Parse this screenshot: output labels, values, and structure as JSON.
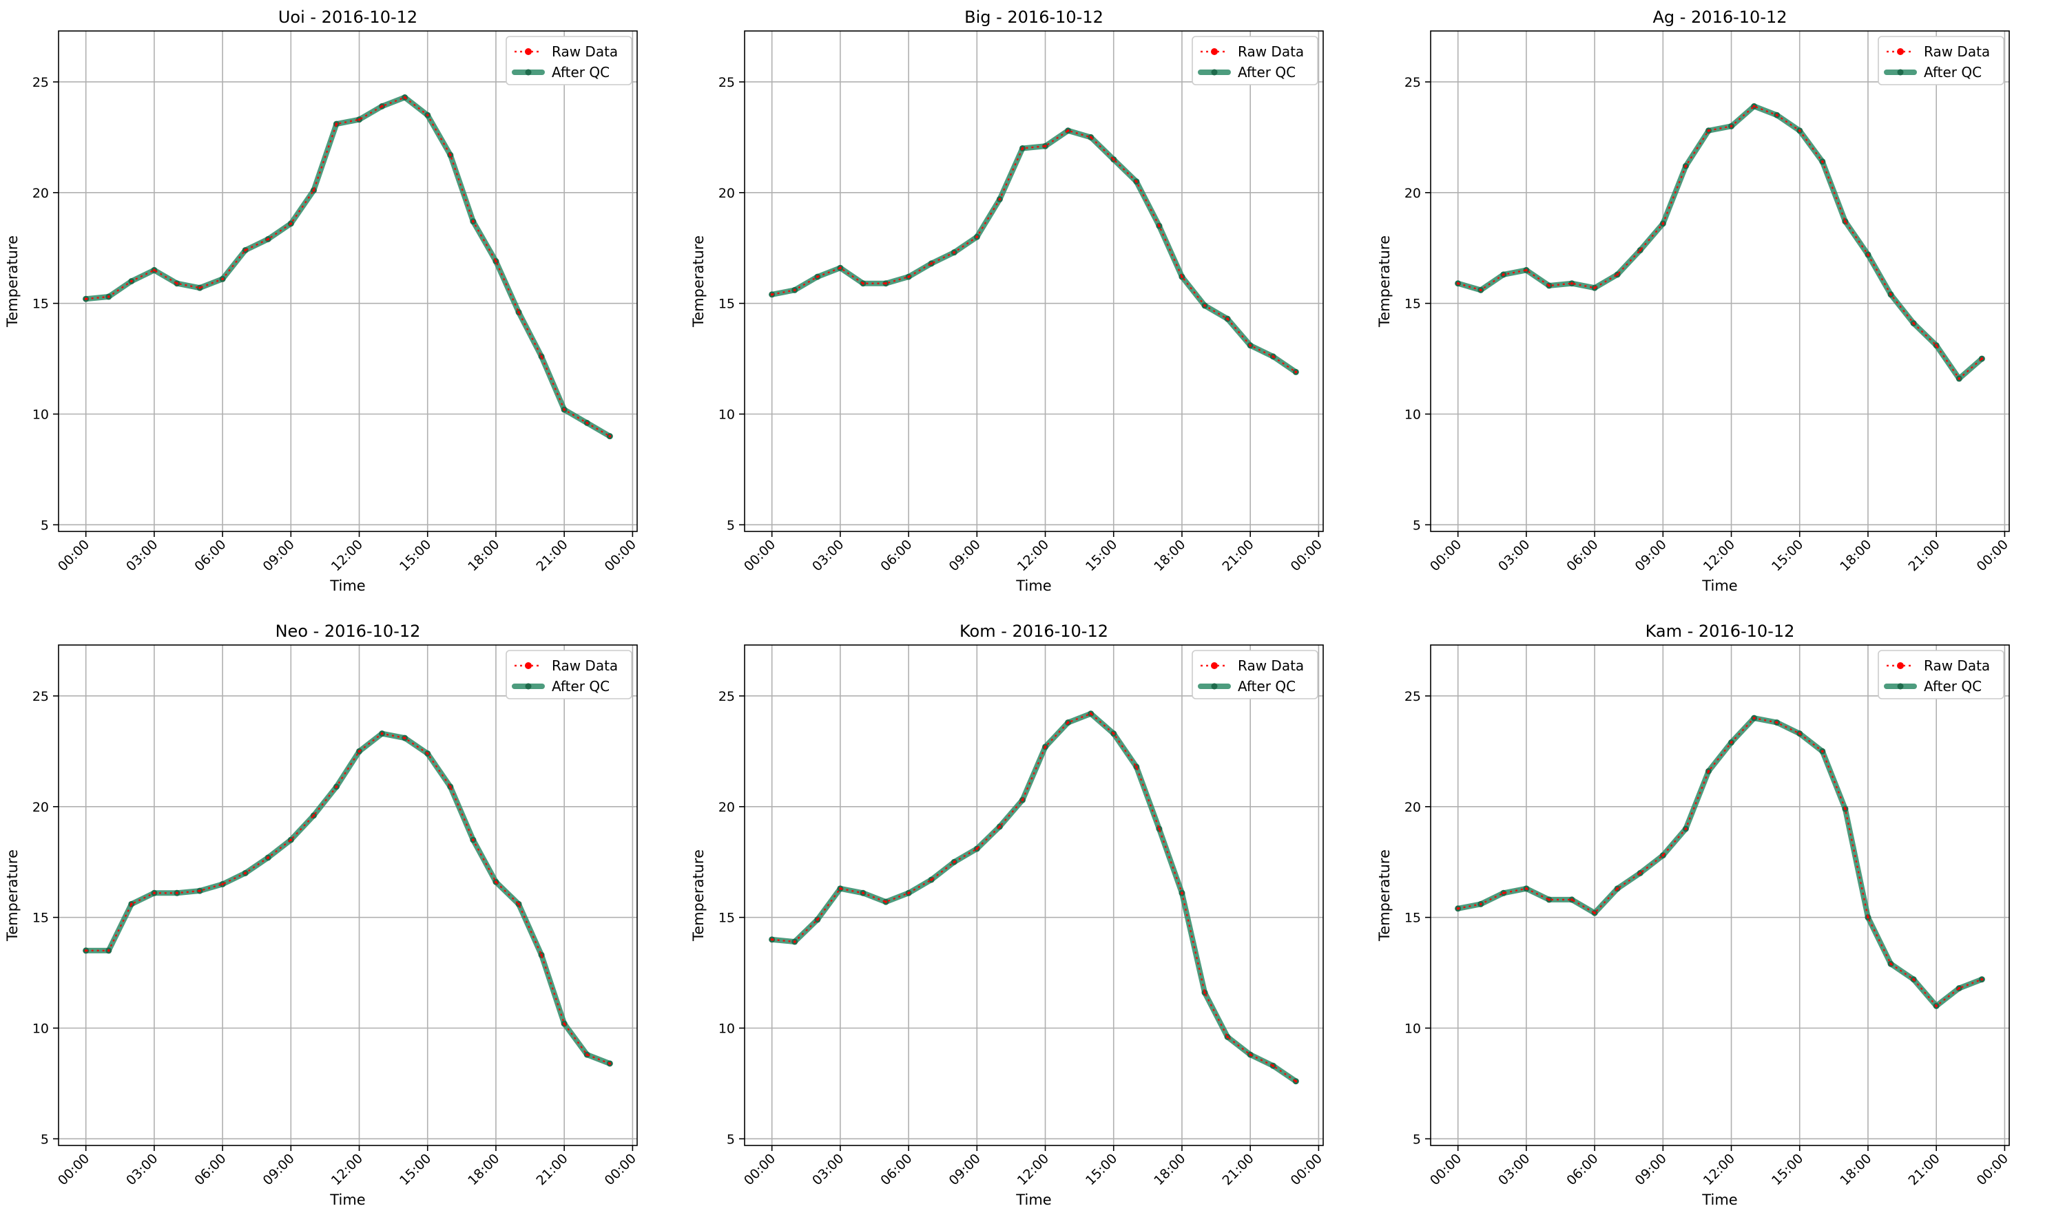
{
  "chart_data": [
    {
      "type": "line",
      "title": "Uoi - 2016-10-12",
      "xlabel": "Time",
      "ylabel": "Temperature",
      "x": [
        "00:00",
        "01:00",
        "02:00",
        "03:00",
        "04:00",
        "05:00",
        "06:00",
        "07:00",
        "08:00",
        "09:00",
        "10:00",
        "11:00",
        "12:00",
        "13:00",
        "14:00",
        "15:00",
        "16:00",
        "17:00",
        "18:00",
        "19:00",
        "20:00",
        "21:00",
        "22:00",
        "23:00"
      ],
      "xticks": [
        "00:00",
        "03:00",
        "06:00",
        "09:00",
        "12:00",
        "15:00",
        "18:00",
        "21:00",
        "00:00"
      ],
      "yticks": [
        "5",
        "10",
        "15",
        "20",
        "25"
      ],
      "xlim": [
        -1.2,
        24.2
      ],
      "ylim": [
        4.7,
        27.3
      ],
      "grid": true,
      "legend": {
        "position": "top-right",
        "entries": [
          "Raw Data",
          "After QC"
        ]
      },
      "series": [
        {
          "name": "Raw Data",
          "color": "#ff0000",
          "values": [
            15.2,
            15.3,
            16.0,
            16.5,
            15.9,
            15.7,
            16.1,
            17.4,
            17.9,
            18.6,
            20.1,
            23.1,
            23.3,
            23.9,
            24.3,
            23.5,
            21.7,
            18.7,
            16.9,
            14.6,
            12.6,
            10.2,
            9.6,
            9.0
          ]
        },
        {
          "name": "After QC",
          "color": "#2e8b67",
          "values": [
            15.2,
            15.3,
            16.0,
            16.5,
            15.9,
            15.7,
            16.1,
            17.4,
            17.9,
            18.6,
            20.1,
            23.1,
            23.3,
            23.9,
            24.3,
            23.5,
            21.7,
            18.7,
            16.9,
            14.6,
            12.6,
            10.2,
            9.6,
            9.0
          ]
        }
      ]
    },
    {
      "type": "line",
      "title": "Big - 2016-10-12",
      "xlabel": "Time",
      "ylabel": "Temperature",
      "x": [
        "00:00",
        "01:00",
        "02:00",
        "03:00",
        "04:00",
        "05:00",
        "06:00",
        "07:00",
        "08:00",
        "09:00",
        "10:00",
        "11:00",
        "12:00",
        "13:00",
        "14:00",
        "15:00",
        "16:00",
        "17:00",
        "18:00",
        "19:00",
        "20:00",
        "21:00",
        "22:00",
        "23:00"
      ],
      "xticks": [
        "00:00",
        "03:00",
        "06:00",
        "09:00",
        "12:00",
        "15:00",
        "18:00",
        "21:00",
        "00:00"
      ],
      "yticks": [
        "5",
        "10",
        "15",
        "20",
        "25"
      ],
      "xlim": [
        -1.2,
        24.2
      ],
      "ylim": [
        4.7,
        27.3
      ],
      "grid": true,
      "legend": {
        "position": "top-right",
        "entries": [
          "Raw Data",
          "After QC"
        ]
      },
      "series": [
        {
          "name": "Raw Data",
          "color": "#ff0000",
          "values": [
            15.4,
            15.6,
            16.2,
            16.6,
            15.9,
            15.9,
            16.2,
            16.8,
            17.3,
            18.0,
            19.7,
            22.0,
            22.1,
            22.8,
            22.5,
            21.5,
            20.5,
            18.5,
            16.2,
            14.9,
            14.3,
            13.1,
            12.6,
            11.9
          ]
        },
        {
          "name": "After QC",
          "color": "#2e8b67",
          "values": [
            15.4,
            15.6,
            16.2,
            16.6,
            15.9,
            15.9,
            16.2,
            16.8,
            17.3,
            18.0,
            19.7,
            22.0,
            22.1,
            22.8,
            22.5,
            21.5,
            20.5,
            18.5,
            16.2,
            14.9,
            14.3,
            13.1,
            12.6,
            11.9
          ]
        }
      ]
    },
    {
      "type": "line",
      "title": "Ag - 2016-10-12",
      "xlabel": "Time",
      "ylabel": "Temperature",
      "x": [
        "00:00",
        "01:00",
        "02:00",
        "03:00",
        "04:00",
        "05:00",
        "06:00",
        "07:00",
        "08:00",
        "09:00",
        "10:00",
        "11:00",
        "12:00",
        "13:00",
        "14:00",
        "15:00",
        "16:00",
        "17:00",
        "18:00",
        "19:00",
        "20:00",
        "21:00",
        "22:00",
        "23:00"
      ],
      "xticks": [
        "00:00",
        "03:00",
        "06:00",
        "09:00",
        "12:00",
        "15:00",
        "18:00",
        "21:00",
        "00:00"
      ],
      "yticks": [
        "5",
        "10",
        "15",
        "20",
        "25"
      ],
      "xlim": [
        -1.2,
        24.2
      ],
      "ylim": [
        4.7,
        27.3
      ],
      "grid": true,
      "legend": {
        "position": "top-right",
        "entries": [
          "Raw Data",
          "After QC"
        ]
      },
      "series": [
        {
          "name": "Raw Data",
          "color": "#ff0000",
          "values": [
            15.9,
            15.6,
            16.3,
            16.5,
            15.8,
            15.9,
            15.7,
            16.3,
            17.4,
            18.6,
            21.2,
            22.8,
            23.0,
            23.9,
            23.5,
            22.8,
            21.4,
            18.7,
            17.2,
            15.4,
            14.1,
            13.1,
            11.6,
            12.5
          ]
        },
        {
          "name": "After QC",
          "color": "#2e8b67",
          "values": [
            15.9,
            15.6,
            16.3,
            16.5,
            15.8,
            15.9,
            15.7,
            16.3,
            17.4,
            18.6,
            21.2,
            22.8,
            23.0,
            23.9,
            23.5,
            22.8,
            21.4,
            18.7,
            17.2,
            15.4,
            14.1,
            13.1,
            11.6,
            12.5
          ]
        }
      ]
    },
    {
      "type": "line",
      "title": "Neo - 2016-10-12",
      "xlabel": "Time",
      "ylabel": "Temperature",
      "x": [
        "00:00",
        "01:00",
        "02:00",
        "03:00",
        "04:00",
        "05:00",
        "06:00",
        "07:00",
        "08:00",
        "09:00",
        "10:00",
        "11:00",
        "12:00",
        "13:00",
        "14:00",
        "15:00",
        "16:00",
        "17:00",
        "18:00",
        "19:00",
        "20:00",
        "21:00",
        "22:00",
        "23:00"
      ],
      "xticks": [
        "00:00",
        "03:00",
        "06:00",
        "09:00",
        "12:00",
        "15:00",
        "18:00",
        "21:00",
        "00:00"
      ],
      "yticks": [
        "5",
        "10",
        "15",
        "20",
        "25"
      ],
      "xlim": [
        -1.2,
        24.2
      ],
      "ylim": [
        4.7,
        27.3
      ],
      "grid": true,
      "legend": {
        "position": "top-right",
        "entries": [
          "Raw Data",
          "After QC"
        ]
      },
      "series": [
        {
          "name": "Raw Data",
          "color": "#ff0000",
          "values": [
            13.5,
            13.5,
            15.6,
            16.1,
            16.1,
            16.2,
            16.5,
            17.0,
            17.7,
            18.5,
            19.6,
            20.9,
            22.5,
            23.3,
            23.1,
            22.4,
            20.9,
            18.5,
            16.6,
            15.6,
            13.3,
            10.2,
            8.8,
            8.4
          ]
        },
        {
          "name": "After QC",
          "color": "#2e8b67",
          "values": [
            13.5,
            13.5,
            15.6,
            16.1,
            16.1,
            16.2,
            16.5,
            17.0,
            17.7,
            18.5,
            19.6,
            20.9,
            22.5,
            23.3,
            23.1,
            22.4,
            20.9,
            18.5,
            16.6,
            15.6,
            13.3,
            10.2,
            8.8,
            8.4
          ]
        }
      ]
    },
    {
      "type": "line",
      "title": "Kom - 2016-10-12",
      "xlabel": "Time",
      "ylabel": "Temperature",
      "x": [
        "00:00",
        "01:00",
        "02:00",
        "03:00",
        "04:00",
        "05:00",
        "06:00",
        "07:00",
        "08:00",
        "09:00",
        "10:00",
        "11:00",
        "12:00",
        "13:00",
        "14:00",
        "15:00",
        "16:00",
        "17:00",
        "18:00",
        "19:00",
        "20:00",
        "21:00",
        "22:00",
        "23:00"
      ],
      "xticks": [
        "00:00",
        "03:00",
        "06:00",
        "09:00",
        "12:00",
        "15:00",
        "18:00",
        "21:00",
        "00:00"
      ],
      "yticks": [
        "5",
        "10",
        "15",
        "20",
        "25"
      ],
      "xlim": [
        -1.2,
        24.2
      ],
      "ylim": [
        4.7,
        27.3
      ],
      "grid": true,
      "legend": {
        "position": "top-right",
        "entries": [
          "Raw Data",
          "After QC"
        ]
      },
      "series": [
        {
          "name": "Raw Data",
          "color": "#ff0000",
          "values": [
            14.0,
            13.9,
            14.9,
            16.3,
            16.1,
            15.7,
            16.1,
            16.7,
            17.5,
            18.1,
            19.1,
            20.3,
            22.7,
            23.8,
            24.2,
            23.3,
            21.8,
            19.0,
            16.1,
            11.6,
            9.6,
            8.8,
            8.3,
            7.6
          ]
        },
        {
          "name": "After QC",
          "color": "#2e8b67",
          "values": [
            14.0,
            13.9,
            14.9,
            16.3,
            16.1,
            15.7,
            16.1,
            16.7,
            17.5,
            18.1,
            19.1,
            20.3,
            22.7,
            23.8,
            24.2,
            23.3,
            21.8,
            19.0,
            16.1,
            11.6,
            9.6,
            8.8,
            8.3,
            7.6
          ]
        }
      ]
    },
    {
      "type": "line",
      "title": "Kam - 2016-10-12",
      "xlabel": "Time",
      "ylabel": "Temperature",
      "x": [
        "00:00",
        "01:00",
        "02:00",
        "03:00",
        "04:00",
        "05:00",
        "06:00",
        "07:00",
        "08:00",
        "09:00",
        "10:00",
        "11:00",
        "12:00",
        "13:00",
        "14:00",
        "15:00",
        "16:00",
        "17:00",
        "18:00",
        "19:00",
        "20:00",
        "21:00",
        "22:00",
        "23:00"
      ],
      "xticks": [
        "00:00",
        "03:00",
        "06:00",
        "09:00",
        "12:00",
        "15:00",
        "18:00",
        "21:00",
        "00:00"
      ],
      "yticks": [
        "5",
        "10",
        "15",
        "20",
        "25"
      ],
      "xlim": [
        -1.2,
        24.2
      ],
      "ylim": [
        4.7,
        27.3
      ],
      "grid": true,
      "legend": {
        "position": "top-right",
        "entries": [
          "Raw Data",
          "After QC"
        ]
      },
      "series": [
        {
          "name": "Raw Data",
          "color": "#ff0000",
          "values": [
            15.4,
            15.6,
            16.1,
            16.3,
            15.8,
            15.8,
            15.2,
            16.3,
            17.0,
            17.8,
            19.0,
            21.6,
            22.9,
            24.0,
            23.8,
            23.3,
            22.5,
            19.9,
            15.0,
            12.9,
            12.2,
            11.0,
            11.8,
            12.2
          ]
        },
        {
          "name": "After QC",
          "color": "#2e8b67",
          "values": [
            15.4,
            15.6,
            16.1,
            16.3,
            15.8,
            15.8,
            15.2,
            16.3,
            17.0,
            17.8,
            19.0,
            21.6,
            22.9,
            24.0,
            23.8,
            23.3,
            22.5,
            19.9,
            15.0,
            12.9,
            12.2,
            11.0,
            11.8,
            12.2
          ]
        }
      ]
    }
  ]
}
